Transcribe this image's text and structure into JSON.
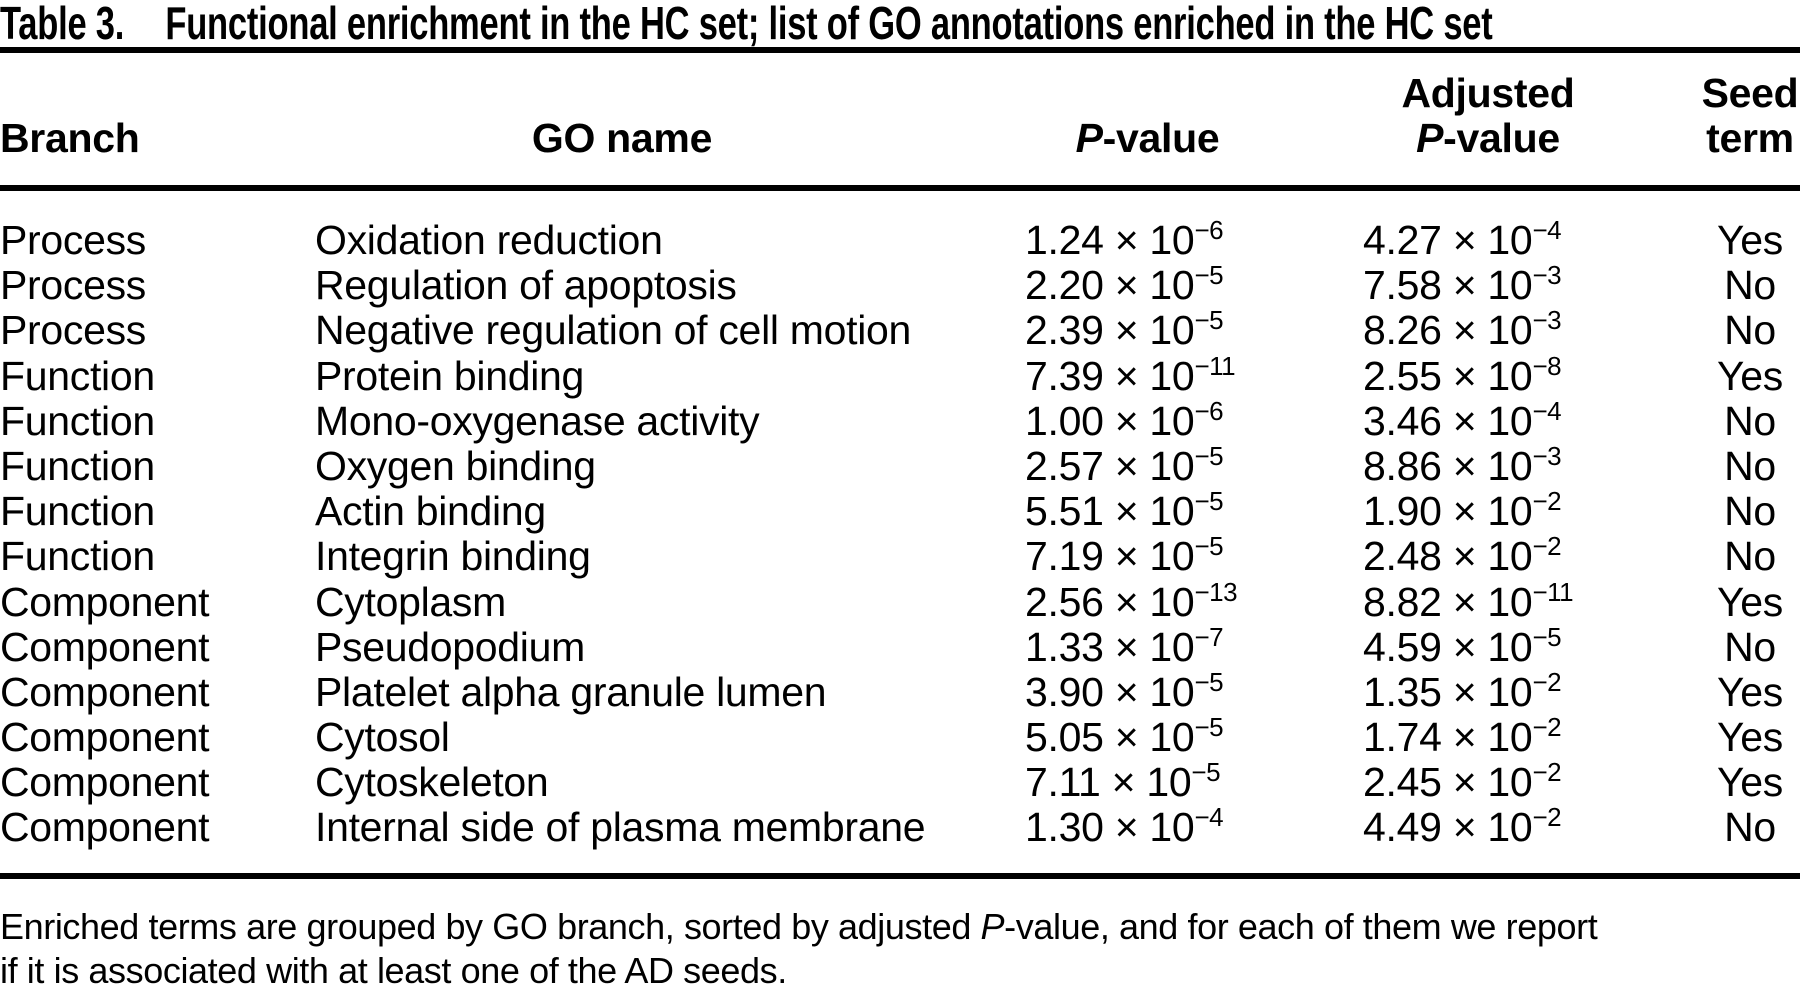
{
  "table": {
    "number": "Table 3.",
    "caption": "Functional enrichment in the HC set; list of GO annotations enriched in the HC set",
    "times": "×",
    "header": {
      "branch": "Branch",
      "go_name": "GO name",
      "p_value": {
        "italic": "P",
        "rest": "-value"
      },
      "adjusted_p_value": {
        "line1": "Adjusted",
        "line2_italic": "P",
        "line2_rest": "-value"
      },
      "seed_term": {
        "line1": "Seed",
        "line2": "term"
      }
    },
    "rows": [
      {
        "branch": "Process",
        "go_name": "Oxidation reduction",
        "p": {
          "m": "1.24",
          "e": "−6"
        },
        "adj": {
          "m": "4.27",
          "e": "−4"
        },
        "seed": "Yes"
      },
      {
        "branch": "Process",
        "go_name": "Regulation of apoptosis",
        "p": {
          "m": "2.20",
          "e": "−5"
        },
        "adj": {
          "m": "7.58",
          "e": "−3"
        },
        "seed": "No"
      },
      {
        "branch": "Process",
        "go_name": "Negative regulation of cell motion",
        "p": {
          "m": "2.39",
          "e": "−5"
        },
        "adj": {
          "m": "8.26",
          "e": "−3"
        },
        "seed": "No"
      },
      {
        "branch": "Function",
        "go_name": "Protein binding",
        "p": {
          "m": "7.39",
          "e": "−11"
        },
        "adj": {
          "m": "2.55",
          "e": "−8"
        },
        "seed": "Yes"
      },
      {
        "branch": "Function",
        "go_name": "Mono-oxygenase activity",
        "p": {
          "m": "1.00",
          "e": "−6"
        },
        "adj": {
          "m": "3.46",
          "e": "−4"
        },
        "seed": "No"
      },
      {
        "branch": "Function",
        "go_name": "Oxygen binding",
        "p": {
          "m": "2.57",
          "e": "−5"
        },
        "adj": {
          "m": "8.86",
          "e": "−3"
        },
        "seed": "No"
      },
      {
        "branch": "Function",
        "go_name": "Actin binding",
        "p": {
          "m": "5.51",
          "e": "−5"
        },
        "adj": {
          "m": "1.90",
          "e": "−2"
        },
        "seed": "No"
      },
      {
        "branch": "Function",
        "go_name": "Integrin binding",
        "p": {
          "m": "7.19",
          "e": "−5"
        },
        "adj": {
          "m": "2.48",
          "e": "−2"
        },
        "seed": "No"
      },
      {
        "branch": "Component",
        "go_name": "Cytoplasm",
        "p": {
          "m": "2.56",
          "e": "−13"
        },
        "adj": {
          "m": "8.82",
          "e": "−11"
        },
        "seed": "Yes"
      },
      {
        "branch": "Component",
        "go_name": "Pseudopodium",
        "p": {
          "m": "1.33",
          "e": "−7"
        },
        "adj": {
          "m": "4.59",
          "e": "−5"
        },
        "seed": "No"
      },
      {
        "branch": "Component",
        "go_name": "Platelet alpha granule lumen",
        "p": {
          "m": "3.90",
          "e": "−5"
        },
        "adj": {
          "m": "1.35",
          "e": "−2"
        },
        "seed": "Yes"
      },
      {
        "branch": "Component",
        "go_name": "Cytosol",
        "p": {
          "m": "5.05",
          "e": "−5"
        },
        "adj": {
          "m": "1.74",
          "e": "−2"
        },
        "seed": "Yes"
      },
      {
        "branch": "Component",
        "go_name": "Cytoskeleton",
        "p": {
          "m": "7.11",
          "e": "−5"
        },
        "adj": {
          "m": "2.45",
          "e": "−2"
        },
        "seed": "Yes"
      },
      {
        "branch": "Component",
        "go_name": "Internal side of plasma membrane",
        "p": {
          "m": "1.30",
          "e": "−4"
        },
        "adj": {
          "m": "4.49",
          "e": "−2"
        },
        "seed": "No"
      }
    ],
    "footnote": {
      "line1_before": "Enriched terms are grouped by GO branch, sorted by adjusted ",
      "line1_italic": "P",
      "line1_after": "-value, and for each of them we report",
      "line2": "if it is associated with at least one of the AD seeds."
    }
  }
}
